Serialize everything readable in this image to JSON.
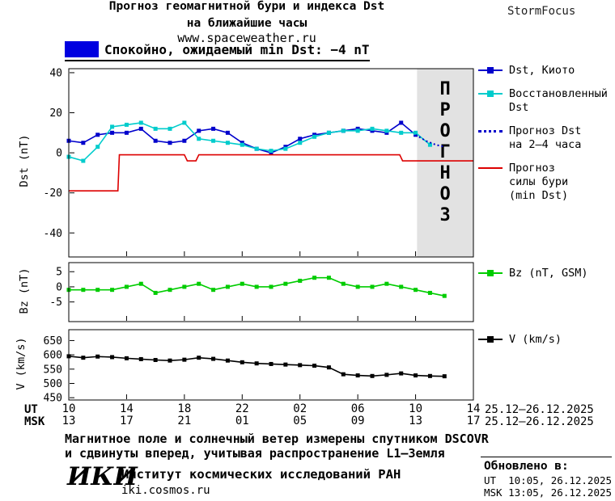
{
  "header": {
    "title_line1": "Прогноз геомагнитной бури и индекса Dst",
    "title_line2": "на ближайшие часы",
    "site": "www.spaceweather.ru",
    "brand": "StormFocus"
  },
  "banner": {
    "text": "Спокойно, ожидаемый min Dst: −4 nT",
    "color": "#0000e0"
  },
  "chart_data": [
    {
      "id": "dst",
      "type": "line",
      "ylabel": "Dst (nT)",
      "ylim": [
        -52,
        42
      ],
      "yticks": [
        40,
        20,
        0,
        -20,
        -40
      ],
      "xlim": [
        0,
        28
      ],
      "x_unit": "hours from 10:00 UT 25.12.2025",
      "forecast_region": {
        "start": 24.1,
        "end": 28,
        "label": "ПРОГНОЗ"
      },
      "series": [
        {
          "name": "Dst, Киото",
          "color": "#0000cc",
          "marker": true,
          "dash": null,
          "x": [
            0,
            1,
            2,
            3,
            4,
            5,
            6,
            7,
            8,
            9,
            10,
            11,
            12,
            13,
            14,
            15,
            16,
            17,
            18,
            19,
            20,
            21,
            22,
            23,
            24
          ],
          "y": [
            6,
            5,
            9,
            10,
            10,
            12,
            6,
            5,
            6,
            11,
            12,
            10,
            5,
            2,
            0,
            3,
            7,
            9,
            10,
            11,
            12,
            11,
            10,
            15,
            9
          ]
        },
        {
          "name": "Восстановленный Dst",
          "color": "#00cccc",
          "marker": true,
          "dash": null,
          "x": [
            0,
            1,
            2,
            3,
            4,
            5,
            6,
            7,
            8,
            9,
            10,
            11,
            12,
            13,
            14,
            15,
            16,
            17,
            18,
            19,
            20,
            21,
            22,
            23,
            24,
            25
          ],
          "y": [
            -2,
            -4,
            3,
            13,
            14,
            15,
            12,
            12,
            15,
            7,
            6,
            5,
            4,
            2,
            1,
            2,
            5,
            8,
            10,
            11,
            11,
            12,
            11,
            10,
            10,
            4
          ]
        },
        {
          "name": "Прогноз Dst на 2–4 часа",
          "color": "#0000cc",
          "marker": false,
          "dash": "2,3",
          "x": [
            24,
            24.7,
            25.4,
            26
          ],
          "y": [
            9,
            6,
            4,
            3
          ]
        },
        {
          "name": "Прогноз силы бури (min Dst)",
          "color": "#dd0000",
          "marker": false,
          "dash": null,
          "x": [
            0,
            3.4,
            3.5,
            8,
            8.2,
            8.8,
            9,
            22.9,
            23.1,
            28
          ],
          "y": [
            -19,
            -19,
            -1,
            -1,
            -4,
            -4,
            -1,
            -1,
            -4,
            -4
          ]
        }
      ]
    },
    {
      "id": "bz",
      "type": "line",
      "ylabel": "Bz (nT)",
      "ylim": [
        -11.5,
        8
      ],
      "yticks": [
        5,
        0,
        -5
      ],
      "xlim": [
        0,
        28
      ],
      "series": [
        {
          "name": "Bz (nT, GSM)",
          "color": "#00cc00",
          "marker": true,
          "dash": null,
          "x": [
            0,
            1,
            2,
            3,
            4,
            5,
            6,
            7,
            8,
            9,
            10,
            11,
            12,
            13,
            14,
            15,
            16,
            17,
            18,
            19,
            20,
            21,
            22,
            23,
            24,
            25,
            26
          ],
          "y": [
            -1,
            -1,
            -1,
            -1,
            0,
            1,
            -2,
            -1,
            0,
            1,
            -1,
            0,
            1,
            0,
            0,
            1,
            2,
            3,
            3,
            1,
            0,
            0,
            1,
            0,
            -1,
            -2,
            -3
          ]
        }
      ]
    },
    {
      "id": "v",
      "type": "line",
      "ylabel": "V (km/s)",
      "ylim": [
        442,
        688
      ],
      "yticks": [
        650,
        600,
        550,
        500,
        450
      ],
      "xlim": [
        0,
        28
      ],
      "series": [
        {
          "name": "V (km/s)",
          "color": "#000000",
          "marker": true,
          "dash": null,
          "x": [
            0,
            1,
            2,
            3,
            4,
            5,
            6,
            7,
            8,
            9,
            10,
            11,
            12,
            13,
            14,
            15,
            16,
            17,
            18,
            19,
            20,
            21,
            22,
            23,
            24,
            25,
            26
          ],
          "y": [
            595,
            590,
            594,
            592,
            588,
            585,
            582,
            580,
            583,
            590,
            586,
            580,
            574,
            570,
            568,
            566,
            564,
            562,
            556,
            532,
            528,
            526,
            530,
            535,
            528,
            526,
            525
          ]
        }
      ]
    }
  ],
  "xaxis": {
    "tick_hours": [
      0,
      4,
      8,
      12,
      16,
      20,
      24,
      28
    ],
    "ut_label": "UT",
    "msk_label": "MSK",
    "ut_ticks": [
      "10",
      "14",
      "18",
      "22",
      "02",
      "06",
      "10",
      "14"
    ],
    "msk_ticks": [
      "13",
      "17",
      "21",
      "01",
      "05",
      "09",
      "13",
      "17"
    ],
    "date_range": "25.12–26.12.2025"
  },
  "legend": {
    "main": [
      {
        "label": "Dst, Киото",
        "color": "#0000cc"
      },
      {
        "label": "Восстановленный\nDst",
        "color": "#00cccc"
      },
      {
        "label": "Прогноз Dst\nна 2–4 часа",
        "color": "#0000cc"
      },
      {
        "label": "Прогноз\nсилы бури\n(min Dst)",
        "color": "#dd0000"
      }
    ],
    "bz": {
      "label": "Bz (nT, GSM)",
      "color": "#00cc00"
    },
    "v": {
      "label": "V (km/s)",
      "color": "#000000"
    }
  },
  "footer": {
    "note_line1": "Магнитное поле и солнечный ветер измерены спутником DSCOVR",
    "note_line2": "и сдвинуты вперед, учитывая распространение L1–Земля",
    "logo": "ИКИ",
    "institute": "Институт космических исследований РАН",
    "institute_site": "iki.cosmos.ru",
    "updated_title": "Обновлено в:",
    "updated_ut": "UT  10:05, 26.12.2025",
    "updated_msk": "MSK 13:05, 26.12.2025"
  }
}
